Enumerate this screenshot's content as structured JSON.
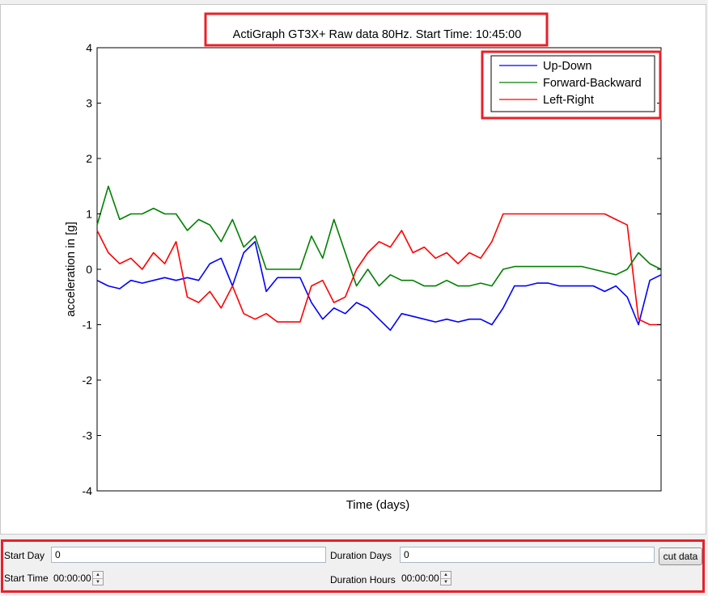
{
  "chart_data": {
    "type": "line",
    "title": "ActiGraph GT3X+ Raw data 80Hz. Start Time: 10:45:00",
    "xlabel": "Time (days)",
    "ylabel": "acceleration in [g]",
    "ylim": [
      -4,
      4
    ],
    "yticks": [
      "-4",
      "-3",
      "-2",
      "-1",
      "0",
      "1",
      "2",
      "3",
      "4"
    ],
    "xticks": [],
    "x_range": [
      0,
      1
    ],
    "legend_position": "top-right",
    "grid": false,
    "series": [
      {
        "name": "Up-Down",
        "color": "#0000ff",
        "x": [
          0.0,
          0.02,
          0.04,
          0.06,
          0.08,
          0.1,
          0.12,
          0.14,
          0.16,
          0.18,
          0.2,
          0.22,
          0.24,
          0.26,
          0.28,
          0.3,
          0.32,
          0.34,
          0.36,
          0.38,
          0.4,
          0.42,
          0.44,
          0.46,
          0.48,
          0.5,
          0.52,
          0.54,
          0.56,
          0.58,
          0.6,
          0.62,
          0.64,
          0.66,
          0.68,
          0.7,
          0.72,
          0.74,
          0.76,
          0.78,
          0.8,
          0.82,
          0.84,
          0.86,
          0.88,
          0.9,
          0.92,
          0.94,
          0.96,
          0.98,
          1.0
        ],
        "y": [
          -0.2,
          -0.3,
          -0.35,
          -0.2,
          -0.25,
          -0.2,
          -0.15,
          -0.2,
          -0.15,
          -0.2,
          0.1,
          0.2,
          -0.3,
          0.3,
          0.5,
          -0.4,
          -0.15,
          -0.15,
          -0.15,
          -0.6,
          -0.9,
          -0.7,
          -0.8,
          -0.6,
          -0.7,
          -0.9,
          -1.1,
          -0.8,
          -0.85,
          -0.9,
          -0.95,
          -0.9,
          -0.95,
          -0.9,
          -0.9,
          -1.0,
          -0.7,
          -0.3,
          -0.3,
          -0.25,
          -0.25,
          -0.3,
          -0.3,
          -0.3,
          -0.3,
          -0.4,
          -0.3,
          -0.5,
          -1.0,
          -0.2,
          -0.1
        ]
      },
      {
        "name": "Forward-Backward",
        "color": "#008000",
        "x": [
          0.0,
          0.02,
          0.04,
          0.06,
          0.08,
          0.1,
          0.12,
          0.14,
          0.16,
          0.18,
          0.2,
          0.22,
          0.24,
          0.26,
          0.28,
          0.3,
          0.32,
          0.34,
          0.36,
          0.38,
          0.4,
          0.42,
          0.44,
          0.46,
          0.48,
          0.5,
          0.52,
          0.54,
          0.56,
          0.58,
          0.6,
          0.62,
          0.64,
          0.66,
          0.68,
          0.7,
          0.72,
          0.74,
          0.76,
          0.78,
          0.8,
          0.82,
          0.84,
          0.86,
          0.88,
          0.9,
          0.92,
          0.94,
          0.96,
          0.98,
          1.0
        ],
        "y": [
          0.8,
          1.5,
          0.9,
          1.0,
          1.0,
          1.1,
          1.0,
          1.0,
          0.7,
          0.9,
          0.8,
          0.5,
          0.9,
          0.4,
          0.6,
          0.0,
          0.0,
          0.0,
          0.0,
          0.6,
          0.2,
          0.9,
          0.3,
          -0.3,
          0.0,
          -0.3,
          -0.1,
          -0.2,
          -0.2,
          -0.3,
          -0.3,
          -0.2,
          -0.3,
          -0.3,
          -0.25,
          -0.3,
          0.0,
          0.05,
          0.05,
          0.05,
          0.05,
          0.05,
          0.05,
          0.05,
          0.0,
          -0.05,
          -0.1,
          0.0,
          0.3,
          0.1,
          0.0
        ]
      },
      {
        "name": "Left-Right",
        "color": "#ff0000",
        "x": [
          0.0,
          0.02,
          0.04,
          0.06,
          0.08,
          0.1,
          0.12,
          0.14,
          0.16,
          0.18,
          0.2,
          0.22,
          0.24,
          0.26,
          0.28,
          0.3,
          0.32,
          0.34,
          0.36,
          0.38,
          0.4,
          0.42,
          0.44,
          0.46,
          0.48,
          0.5,
          0.52,
          0.54,
          0.56,
          0.58,
          0.6,
          0.62,
          0.64,
          0.66,
          0.68,
          0.7,
          0.72,
          0.74,
          0.76,
          0.78,
          0.8,
          0.82,
          0.84,
          0.86,
          0.88,
          0.9,
          0.92,
          0.94,
          0.96,
          0.98,
          1.0
        ],
        "y": [
          0.7,
          0.3,
          0.1,
          0.2,
          0.0,
          0.3,
          0.1,
          0.5,
          -0.5,
          -0.6,
          -0.4,
          -0.7,
          -0.3,
          -0.8,
          -0.9,
          -0.8,
          -0.95,
          -0.95,
          -0.95,
          -0.3,
          -0.2,
          -0.6,
          -0.5,
          0.0,
          0.3,
          0.5,
          0.4,
          0.7,
          0.3,
          0.4,
          0.2,
          0.3,
          0.1,
          0.3,
          0.2,
          0.5,
          1.0,
          1.0,
          1.0,
          1.0,
          1.0,
          1.0,
          1.0,
          1.0,
          1.0,
          1.0,
          0.9,
          0.8,
          -0.9,
          -1.0,
          -1.0
        ]
      }
    ]
  },
  "controls": {
    "start_day_label": "Start Day",
    "start_day_value": "0",
    "duration_days_label": "Duration Days",
    "duration_days_value": "0",
    "cut_button_label": "cut data",
    "start_time_label": "Start Time",
    "start_time_value": "00:00:00",
    "duration_hours_label": "Duration Hours",
    "duration_hours_value": "00:00:00"
  },
  "colors": {
    "highlight": "#e8202a",
    "axis": "#000000",
    "panel_background": "#ffffff",
    "window_background": "#f0f0f0"
  },
  "icons": {
    "spinner_up": "▲",
    "spinner_down": "▼"
  }
}
